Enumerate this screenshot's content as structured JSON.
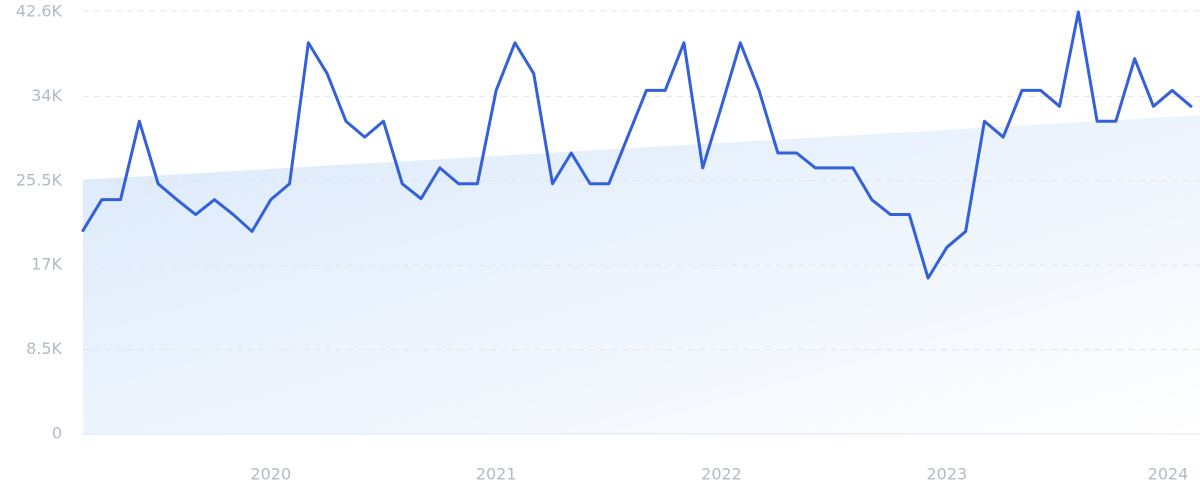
{
  "chart_data": {
    "type": "line",
    "categories": [
      null,
      null,
      null,
      null,
      null,
      null,
      null,
      null,
      null,
      null,
      "2020",
      null,
      null,
      null,
      null,
      null,
      null,
      null,
      null,
      null,
      null,
      null,
      "2021",
      null,
      null,
      null,
      null,
      null,
      null,
      null,
      null,
      null,
      null,
      null,
      "2022",
      null,
      null,
      null,
      null,
      null,
      null,
      null,
      null,
      null,
      null,
      null,
      "2023",
      null,
      null,
      null,
      null,
      null,
      null,
      null,
      null,
      null,
      null,
      null,
      "2024",
      null
    ],
    "series": [
      {
        "color": "#3461d9",
        "values": [
          20500,
          23600,
          23600,
          31500,
          25200,
          23600,
          22100,
          23600,
          22100,
          20400,
          23600,
          25200,
          39400,
          36300,
          31500,
          29900,
          31500,
          25200,
          23700,
          26800,
          25200,
          25200,
          34600,
          39400,
          36300,
          25200,
          28300,
          25200,
          25200,
          29900,
          34600,
          34600,
          39400,
          26800,
          33000,
          39400,
          34600,
          28300,
          28300,
          26800,
          26800,
          26800,
          23600,
          22100,
          22100,
          15700,
          18800,
          20400,
          31500,
          29900,
          34600,
          34600,
          33000,
          42500,
          31500,
          31500,
          37800,
          33000,
          34600,
          33000
        ]
      }
    ],
    "trend": {
      "color": "#dbe9fb",
      "values": [
        25600,
        32100
      ]
    },
    "ylim": [
      0,
      42600
    ],
    "yticks": [
      0,
      {
        "value": 8500,
        "label": "8.5K"
      },
      {
        "value": 17000,
        "label": "17K"
      },
      {
        "value": 25500,
        "label": "25.5K"
      },
      {
        "value": 34000,
        "label": "34K"
      },
      {
        "value": 42600,
        "label": "42.6K"
      }
    ],
    "grid": true
  }
}
